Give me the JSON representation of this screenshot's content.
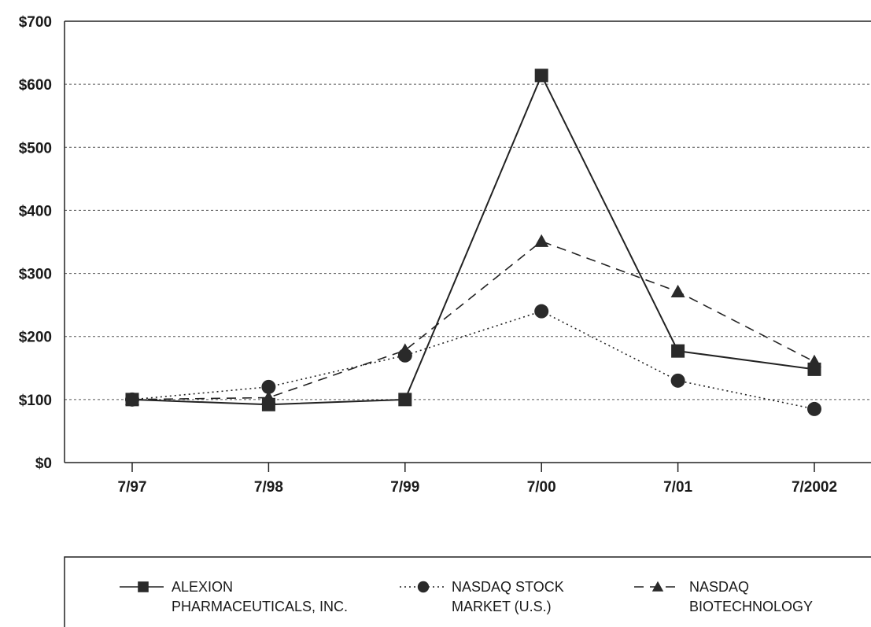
{
  "chart_data": {
    "type": "line",
    "categories": [
      "7/97",
      "7/98",
      "7/99",
      "7/00",
      "7/01",
      "7/2002"
    ],
    "yticks": [
      "$0",
      "$100",
      "$200",
      "$300",
      "$400",
      "$500",
      "$600",
      "$700"
    ],
    "ylim": [
      0,
      700
    ],
    "grid": true,
    "legend_position": "bottom",
    "series": [
      {
        "name_lines": [
          "ALEXION",
          "PHARMACEUTICALS, INC."
        ],
        "values": [
          100,
          92,
          100,
          614,
          177,
          148
        ],
        "marker": "square",
        "line": "solid"
      },
      {
        "name_lines": [
          "NASDAQ STOCK",
          "MARKET (U.S.)"
        ],
        "values": [
          100,
          120,
          170,
          240,
          130,
          85
        ],
        "marker": "circle",
        "line": "dotted"
      },
      {
        "name_lines": [
          "NASDAQ",
          "BIOTECHNOLOGY"
        ],
        "values": [
          100,
          103,
          178,
          351,
          271,
          160
        ],
        "marker": "triangle",
        "line": "dashed"
      }
    ]
  }
}
